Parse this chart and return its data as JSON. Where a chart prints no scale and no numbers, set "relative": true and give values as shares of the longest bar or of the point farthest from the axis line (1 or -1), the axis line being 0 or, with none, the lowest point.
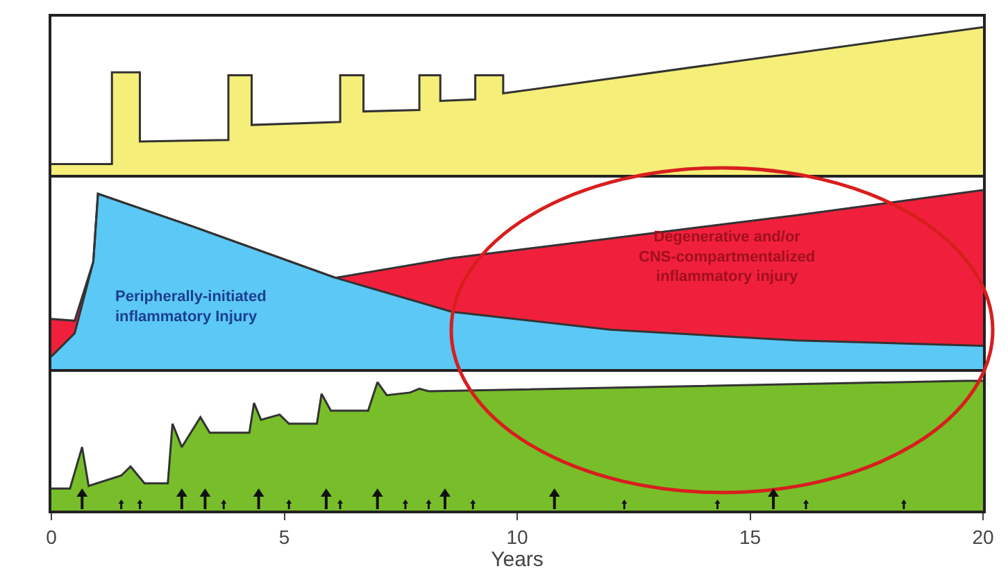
{
  "chart_data": [
    {
      "type": "area",
      "relative": true,
      "tick_labels": false,
      "xlim": [
        0,
        20
      ],
      "x": [
        0,
        1.3,
        1.3,
        1.9,
        1.9,
        3.8,
        3.8,
        4.3,
        4.3,
        6.2,
        6.2,
        6.7,
        6.7,
        7.9,
        7.9,
        8.35,
        8.35,
        9.1,
        9.1,
        9.7,
        9.7,
        20
      ],
      "series": [
        {
          "color": "#f5ee78",
          "values": [
            0.09,
            0.09,
            0.7,
            0.7,
            0.24,
            0.25,
            0.68,
            0.68,
            0.35,
            0.37,
            0.68,
            0.68,
            0.44,
            0.45,
            0.68,
            0.68,
            0.51,
            0.52,
            0.68,
            0.68,
            0.56,
            1
          ]
        }
      ]
    },
    {
      "type": "area",
      "relative": true,
      "stacked": true,
      "tick_labels": false,
      "xlim": [
        0,
        20
      ],
      "x": [
        0,
        0.5,
        0.9,
        1.0,
        3,
        6.1,
        8.6,
        12,
        16,
        20
      ],
      "series": [
        {
          "color": "#5bc8f5",
          "values": [
            0.07,
            0.2,
            0.6,
            0.98,
            0.8,
            0.51,
            0.32,
            0.22,
            0.16,
            0.13
          ]
        },
        {
          "color": "#f0203c",
          "values": [
            0.21,
            0.07,
            0,
            0,
            0,
            0,
            0.3,
            0.51,
            0.7,
            0.87
          ]
        }
      ],
      "annotations": [
        "Peripherally-initiated inflammatory Injury",
        "Degenerative and/or CNS-compartmentalized inflammatory injury"
      ]
    },
    {
      "type": "area",
      "relative": true,
      "tick_labels": "x",
      "xlim": [
        0,
        20
      ],
      "xticks": [
        0,
        5,
        10,
        15,
        20
      ],
      "xlabel": "Years",
      "x": [
        0,
        0.4,
        0.66,
        0.8,
        1.5,
        1.7,
        2.0,
        2.5,
        2.6,
        2.8,
        3.2,
        3.4,
        4.25,
        4.35,
        4.5,
        4.9,
        5.1,
        5.7,
        5.8,
        6.0,
        6.8,
        7.0,
        7.2,
        7.7,
        7.9,
        8.1,
        19.6,
        20
      ],
      "series": [
        {
          "color": "#78be2a",
          "values": [
            0.17,
            0.17,
            0.49,
            0.19,
            0.27,
            0.34,
            0.21,
            0.21,
            0.67,
            0.49,
            0.72,
            0.6,
            0.6,
            0.83,
            0.7,
            0.74,
            0.67,
            0.67,
            0.9,
            0.77,
            0.77,
            0.99,
            0.89,
            0.91,
            0.94,
            0.92,
            1,
            1
          ]
        }
      ]
    }
  ]
}
